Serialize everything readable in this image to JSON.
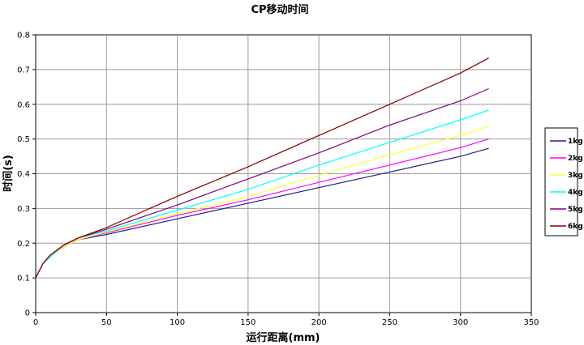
{
  "chart_data": {
    "type": "line",
    "title": "CP移动时间",
    "xlabel": "运行距离(mm)",
    "ylabel": "时间(s)",
    "xlim": [
      0,
      350
    ],
    "ylim": [
      0,
      0.8
    ],
    "xticks": [
      "0",
      "50",
      "100",
      "150",
      "200",
      "250",
      "300",
      "350"
    ],
    "yticks": [
      "0",
      "0.1",
      "0.2",
      "0.3",
      "0.4",
      "0.5",
      "0.6",
      "0.7",
      "0.8"
    ],
    "grid": true,
    "legend_position": "right",
    "x": [
      0,
      5,
      10,
      20,
      30,
      50,
      100,
      150,
      200,
      250,
      300,
      320
    ],
    "series": [
      {
        "name": "1kg",
        "color": "#1f1f8f",
        "values": [
          0.1,
          0.14,
          0.16,
          0.19,
          0.21,
          0.225,
          0.27,
          0.315,
          0.36,
          0.405,
          0.45,
          0.473
        ]
      },
      {
        "name": "2kg",
        "color": "#ff00ff",
        "values": [
          0.1,
          0.14,
          0.16,
          0.19,
          0.21,
          0.23,
          0.28,
          0.325,
          0.375,
          0.425,
          0.475,
          0.5
        ]
      },
      {
        "name": "3kg",
        "color": "#ffff33",
        "values": [
          0.1,
          0.14,
          0.16,
          0.19,
          0.21,
          0.232,
          0.285,
          0.335,
          0.395,
          0.455,
          0.51,
          0.537
        ]
      },
      {
        "name": "4kg",
        "color": "#00ffff",
        "values": [
          0.1,
          0.14,
          0.16,
          0.195,
          0.215,
          0.235,
          0.295,
          0.355,
          0.425,
          0.49,
          0.555,
          0.583
        ]
      },
      {
        "name": "5kg",
        "color": "#800080",
        "values": [
          0.1,
          0.14,
          0.165,
          0.195,
          0.215,
          0.24,
          0.31,
          0.385,
          0.46,
          0.54,
          0.61,
          0.645
        ]
      },
      {
        "name": "6kg",
        "color": "#800000",
        "values": [
          0.1,
          0.14,
          0.165,
          0.195,
          0.215,
          0.245,
          0.335,
          0.42,
          0.51,
          0.6,
          0.69,
          0.733
        ]
      }
    ]
  }
}
